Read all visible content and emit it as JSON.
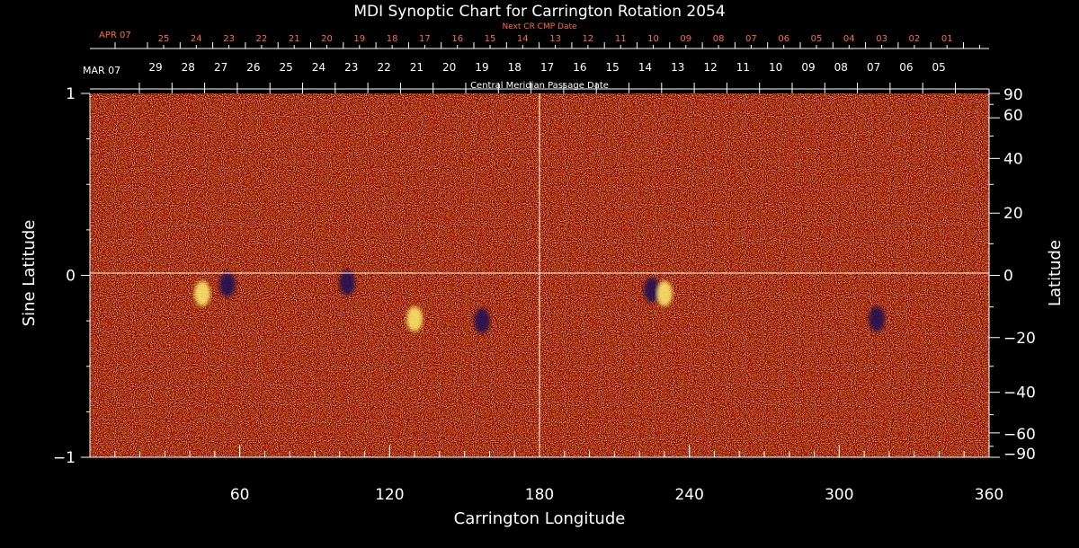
{
  "chart_data": {
    "type": "heatmap",
    "title": "MDI Synoptic Chart for Carrington Rotation 2054",
    "xlabel": "Carrington Longitude",
    "ylabel_left": "Sine Latitude",
    "ylabel_right": "Latitude",
    "xlim": [
      0,
      360
    ],
    "ylim": [
      -1,
      1
    ],
    "x_ticks": [
      "60",
      "120",
      "180",
      "240",
      "300",
      "360"
    ],
    "x_tick_values": [
      60,
      120,
      180,
      240,
      300,
      360
    ],
    "y_left_ticks": [
      "1",
      "0",
      "−1"
    ],
    "y_left_tick_values": [
      1,
      0,
      -1
    ],
    "y_right_ticks": [
      "90",
      "60",
      "40",
      "20",
      "0",
      "−20",
      "−40",
      "−60",
      "−90"
    ],
    "y_right_tick_values": [
      90,
      60,
      40,
      20,
      0,
      -20,
      -40,
      -60,
      -90
    ],
    "reference_lines": {
      "longitude": 180,
      "sine_latitude": 0
    },
    "top_axis": {
      "label": "Central Meridian Passage Date",
      "month_label": "MAR 07",
      "dates": [
        "29",
        "28",
        "27",
        "26",
        "25",
        "24",
        "23",
        "22",
        "21",
        "20",
        "19",
        "18",
        "17",
        "16",
        "15",
        "14",
        "13",
        "12",
        "11",
        "10",
        "09",
        "08",
        "07",
        "06",
        "05"
      ]
    },
    "next_cr_axis": {
      "label": "Next CR CMP Date",
      "month_label": "APR 07",
      "dates": [
        "25",
        "24",
        "23",
        "22",
        "21",
        "20",
        "19",
        "18",
        "17",
        "16",
        "15",
        "14",
        "13",
        "12",
        "11",
        "10",
        "09",
        "08",
        "07",
        "06",
        "05",
        "04",
        "03",
        "02",
        "01"
      ]
    },
    "colors": {
      "background": "#000000",
      "axis": "#ffffff",
      "next_cr": "#ff6a3a",
      "field_base": "#ff4a14",
      "field_positive": "#ffee70",
      "field_negative": "#1c0a55"
    },
    "active_regions": [
      {
        "lon": 45,
        "sinlat": -0.1,
        "polarity": "positive"
      },
      {
        "lon": 55,
        "sinlat": -0.05,
        "polarity": "negative"
      },
      {
        "lon": 103,
        "sinlat": -0.04,
        "polarity": "negative"
      },
      {
        "lon": 130,
        "sinlat": -0.24,
        "polarity": "positive"
      },
      {
        "lon": 157,
        "sinlat": -0.25,
        "polarity": "negative"
      },
      {
        "lon": 225,
        "sinlat": -0.08,
        "polarity": "negative"
      },
      {
        "lon": 230,
        "sinlat": -0.1,
        "polarity": "positive"
      },
      {
        "lon": 315,
        "sinlat": -0.24,
        "polarity": "negative"
      }
    ]
  }
}
